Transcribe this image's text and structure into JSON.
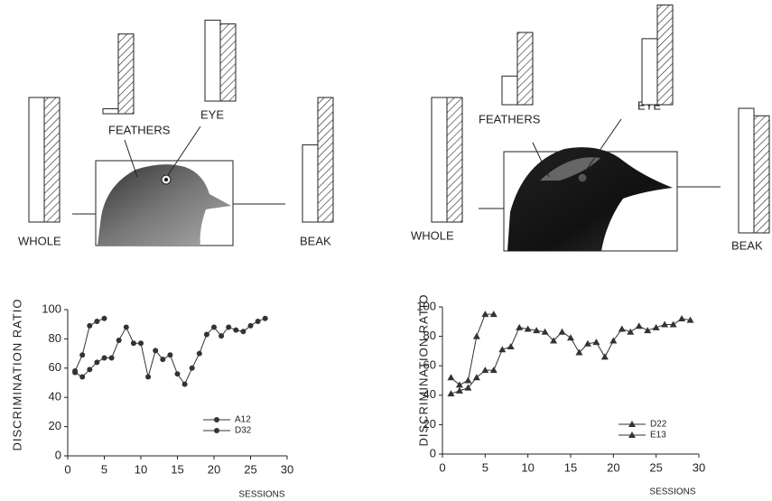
{
  "chart_data": [
    {
      "type": "bar",
      "categories": [
        "WHOLE",
        "FEATHERS",
        "EYE",
        "BEAK"
      ],
      "ylim": [
        0,
        100
      ],
      "series": [
        {
          "color": "#ffffff",
          "values": [
            100,
            4,
            65,
            62
          ]
        },
        {
          "color": "#ffffff",
          "hatch": true,
          "values": [
            100,
            64,
            62,
            100
          ]
        }
      ]
    },
    {
      "type": "line",
      "x_label": "SESSIONS",
      "y_label": "DISCRIMINATION RATIO",
      "xlim": [
        0,
        30
      ],
      "xticks": [
        0,
        5,
        10,
        15,
        20,
        25,
        30
      ],
      "ylim": [
        0,
        100
      ],
      "yticks": [
        0,
        20,
        40,
        60,
        80,
        100
      ],
      "marker": "circle",
      "series": [
        {
          "name": "A12",
          "color": "#333333",
          "x": [
            1,
            2,
            3,
            4,
            5
          ],
          "values": [
            58,
            69,
            89,
            92,
            94
          ]
        },
        {
          "name": "D32",
          "color": "#333333",
          "x": [
            1,
            2,
            3,
            4,
            5,
            6,
            7,
            8,
            9,
            10,
            11,
            12,
            13,
            14,
            15,
            16,
            17,
            18,
            19,
            20,
            21,
            22,
            23,
            24,
            25,
            26,
            27
          ],
          "values": [
            57,
            54,
            59,
            64,
            67,
            67,
            79,
            88,
            77,
            77,
            54,
            72,
            66,
            69,
            56,
            49,
            60,
            70,
            83,
            88,
            82,
            88,
            86,
            85,
            89,
            92,
            94
          ]
        }
      ]
    },
    {
      "type": "bar",
      "categories": [
        "WHOLE",
        "FEATHERS",
        "EYE",
        "BEAK"
      ],
      "ylim": [
        0,
        100
      ],
      "series": [
        {
          "color": "#ffffff",
          "values": [
            100,
            23,
            53,
            100
          ]
        },
        {
          "color": "#ffffff",
          "hatch": true,
          "values": [
            100,
            58,
            80,
            94
          ]
        }
      ]
    },
    {
      "type": "line",
      "x_label": "SESSIONS",
      "y_label": "DISCRIMINATION RATIO",
      "xlim": [
        0,
        30
      ],
      "xticks": [
        0,
        5,
        10,
        15,
        20,
        25,
        30
      ],
      "ylim": [
        0,
        100
      ],
      "yticks": [
        0,
        20,
        40,
        60,
        80,
        100
      ],
      "marker": "triangle",
      "series": [
        {
          "name": "D22",
          "color": "#333333",
          "x": [
            1,
            2,
            3,
            4,
            5,
            6
          ],
          "values": [
            52,
            47,
            50,
            80,
            95,
            95
          ]
        },
        {
          "name": "E13",
          "color": "#333333",
          "x": [
            1,
            2,
            3,
            4,
            5,
            6,
            7,
            8,
            9,
            10,
            11,
            12,
            13,
            14,
            15,
            16,
            17,
            18,
            19,
            20,
            21,
            22,
            23,
            24,
            25,
            26,
            27,
            28,
            29
          ],
          "values": [
            41,
            43,
            45,
            52,
            57,
            57,
            71,
            73,
            86,
            85,
            84,
            83,
            77,
            83,
            79,
            69,
            75,
            76,
            66,
            77,
            85,
            83,
            87,
            84,
            86,
            88,
            88,
            92,
            91
          ]
        }
      ]
    }
  ]
}
